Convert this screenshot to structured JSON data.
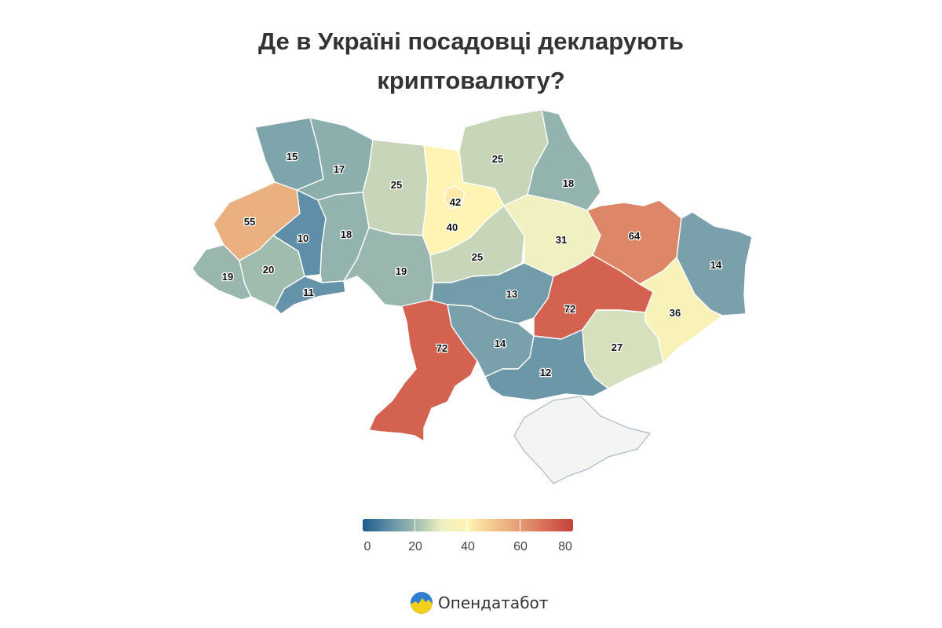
{
  "title_lines": [
    "Де в Україні посадовці декларують",
    "криптовалюту?"
  ],
  "color_scale": {
    "min": 0,
    "max": 80,
    "stops": [
      "#1f5c8b",
      "#5f8ea8",
      "#9fbcaf",
      "#eef0c2",
      "#fff4b3",
      "#f2c58c",
      "#e39b74",
      "#d76a57",
      "#c2413a"
    ],
    "crimea_fill": "#f4f4f4"
  },
  "legend": {
    "labels": [
      "0",
      "20",
      "40",
      "60",
      "80"
    ]
  },
  "regions": [
    {
      "id": "volyn",
      "value": 15
    },
    {
      "id": "rivne",
      "value": 17
    },
    {
      "id": "zhytomyr",
      "value": 25
    },
    {
      "id": "kyiv-oblast",
      "value": 40
    },
    {
      "id": "kyiv-city",
      "value": 42
    },
    {
      "id": "chernihiv",
      "value": 25
    },
    {
      "id": "sumy",
      "value": 18
    },
    {
      "id": "lviv",
      "value": 55
    },
    {
      "id": "ternopil",
      "value": 10
    },
    {
      "id": "khmelnytskyi",
      "value": 18
    },
    {
      "id": "vinnytsia",
      "value": 19
    },
    {
      "id": "cherkasy",
      "value": 25
    },
    {
      "id": "poltava",
      "value": 31
    },
    {
      "id": "kharkiv",
      "value": 64
    },
    {
      "id": "luhansk",
      "value": 14
    },
    {
      "id": "zakarpattia",
      "value": 19
    },
    {
      "id": "ivano-frankivsk",
      "value": 20
    },
    {
      "id": "chernivtsi",
      "value": 11
    },
    {
      "id": "kirovohrad",
      "value": 13
    },
    {
      "id": "dnipropetrovsk",
      "value": 72
    },
    {
      "id": "donetsk",
      "value": 36
    },
    {
      "id": "odesa",
      "value": 72
    },
    {
      "id": "mykolaiv",
      "value": 14
    },
    {
      "id": "zaporizhzhia",
      "value": 27
    },
    {
      "id": "kherson",
      "value": 12
    }
  ],
  "brand": {
    "name": "Опендатабот"
  }
}
